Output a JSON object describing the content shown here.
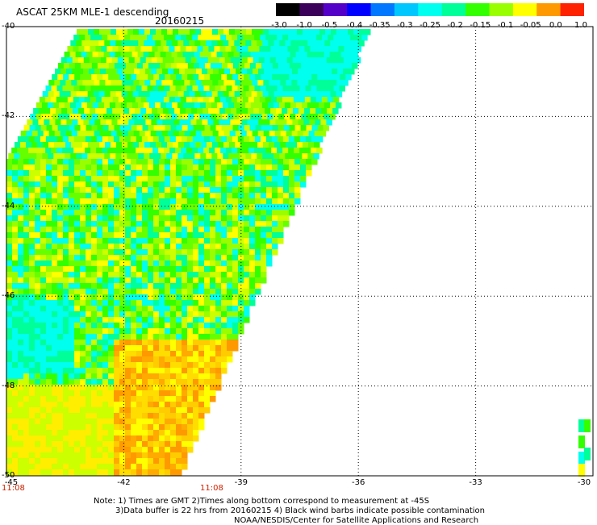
{
  "header": {
    "title": "ASCAT 25KM MLE-1 descending",
    "date": "20160215"
  },
  "colorbar": {
    "labels": [
      "-3.0",
      "-1.0",
      "-0.5",
      "-0.4",
      "-0.35",
      "-0.3",
      "-0.25",
      "-0.2",
      "-0.15",
      "-0.1",
      "-0.05",
      "0.0",
      "1.0"
    ],
    "colors": [
      "#000000",
      "#3a005a",
      "#5500c8",
      "#0000ff",
      "#0078ff",
      "#00c8ff",
      "#00ffee",
      "#00ff99",
      "#33ff00",
      "#99ff00",
      "#ffff00",
      "#ff9900",
      "#ff2200"
    ]
  },
  "axes": {
    "lat_ticks": [
      "-40",
      "-42",
      "-44",
      "-46",
      "-48",
      "-50"
    ],
    "lon_ticks": [
      "-45",
      "-42",
      "-39",
      "-36",
      "-33",
      "-30"
    ]
  },
  "times": {
    "left": "11:08",
    "mid": "11:08"
  },
  "notes": {
    "line1": "Note: 1) Times are GMT 2)Times along bottom correspond to measurement at -45S",
    "line2": "3)Data buffer is 22 hrs from 20160215 4) Black wind barbs indicate possible contamination",
    "line3": "NOAA/NESDIS/Center for Satellite Applications and Research"
  }
}
